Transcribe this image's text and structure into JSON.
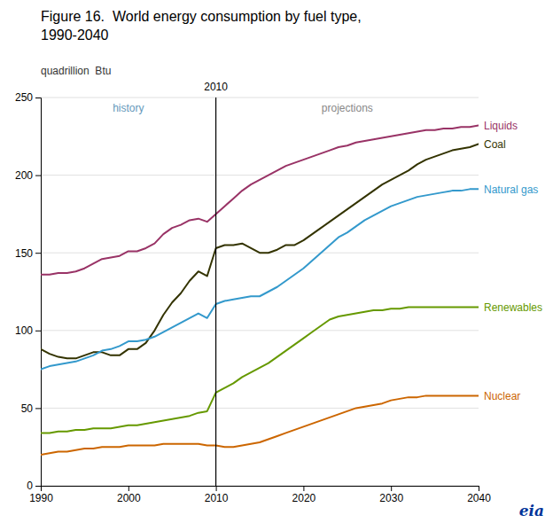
{
  "chart_data": {
    "type": "line",
    "title": "Figure 16.  World energy consumption by fuel type,",
    "subtitle": "1990-2040",
    "y_label": "quadrillion  Btu",
    "annotations": [
      "history",
      "projections",
      "eia"
    ],
    "divider": {
      "x": 2010,
      "label": "2010"
    },
    "xlim": [
      1990,
      2040
    ],
    "ylim": [
      0,
      250
    ],
    "xticks": [
      1990,
      2000,
      2010,
      2020,
      2030,
      2040
    ],
    "yticks": [
      0,
      50,
      100,
      150,
      200,
      250
    ],
    "grid": true,
    "x": [
      1990,
      1991,
      1992,
      1993,
      1994,
      1995,
      1996,
      1997,
      1998,
      1999,
      2000,
      2001,
      2002,
      2003,
      2004,
      2005,
      2006,
      2007,
      2008,
      2009,
      2010,
      2011,
      2012,
      2013,
      2014,
      2015,
      2016,
      2017,
      2018,
      2019,
      2020,
      2021,
      2022,
      2023,
      2024,
      2025,
      2026,
      2027,
      2028,
      2029,
      2030,
      2031,
      2032,
      2033,
      2034,
      2035,
      2036,
      2037,
      2038,
      2039,
      2040
    ],
    "series": [
      {
        "name": "Liquids",
        "color": "#993366",
        "values": [
          136,
          136,
          137,
          137,
          138,
          140,
          143,
          146,
          147,
          148,
          151,
          151,
          153,
          156,
          162,
          166,
          168,
          171,
          172,
          170,
          175,
          180,
          185,
          190,
          194,
          197,
          200,
          203,
          206,
          208,
          210,
          212,
          214,
          216,
          218,
          219,
          221,
          222,
          223,
          224,
          225,
          226,
          227,
          228,
          229,
          229,
          230,
          230,
          231,
          231,
          232
        ]
      },
      {
        "name": "Coal",
        "color": "#333300",
        "values": [
          88,
          85,
          83,
          82,
          82,
          84,
          86,
          86,
          84,
          84,
          88,
          88,
          92,
          100,
          110,
          118,
          124,
          132,
          138,
          135,
          153,
          155,
          155,
          156,
          153,
          150,
          150,
          152,
          155,
          155,
          158,
          162,
          166,
          170,
          174,
          178,
          182,
          186,
          190,
          194,
          197,
          200,
          203,
          207,
          210,
          212,
          214,
          216,
          217,
          218,
          220
        ]
      },
      {
        "name": "Natural gas",
        "color": "#3399cc",
        "values": [
          75,
          77,
          78,
          79,
          80,
          82,
          84,
          87,
          88,
          90,
          93,
          93,
          94,
          96,
          99,
          102,
          105,
          108,
          111,
          108,
          117,
          119,
          120,
          121,
          122,
          122,
          125,
          128,
          132,
          136,
          140,
          145,
          150,
          155,
          160,
          163,
          167,
          171,
          174,
          177,
          180,
          182,
          184,
          186,
          187,
          188,
          189,
          190,
          190,
          191,
          191
        ]
      },
      {
        "name": "Renewables",
        "color": "#669900",
        "values": [
          34,
          34,
          35,
          35,
          36,
          36,
          37,
          37,
          37,
          38,
          39,
          39,
          40,
          41,
          42,
          43,
          44,
          45,
          47,
          48,
          60,
          63,
          66,
          70,
          73,
          76,
          79,
          83,
          87,
          91,
          95,
          99,
          103,
          107,
          109,
          110,
          111,
          112,
          113,
          113,
          114,
          114,
          115,
          115,
          115,
          115,
          115,
          115,
          115,
          115,
          115
        ]
      },
      {
        "name": "Nuclear",
        "color": "#cc6600",
        "values": [
          20,
          21,
          22,
          22,
          23,
          24,
          24,
          25,
          25,
          25,
          26,
          26,
          26,
          26,
          27,
          27,
          27,
          27,
          27,
          26,
          26,
          25,
          25,
          26,
          27,
          28,
          30,
          32,
          34,
          36,
          38,
          40,
          42,
          44,
          46,
          48,
          50,
          51,
          52,
          53,
          55,
          56,
          57,
          57,
          58,
          58,
          58,
          58,
          58,
          58,
          58
        ]
      }
    ]
  }
}
